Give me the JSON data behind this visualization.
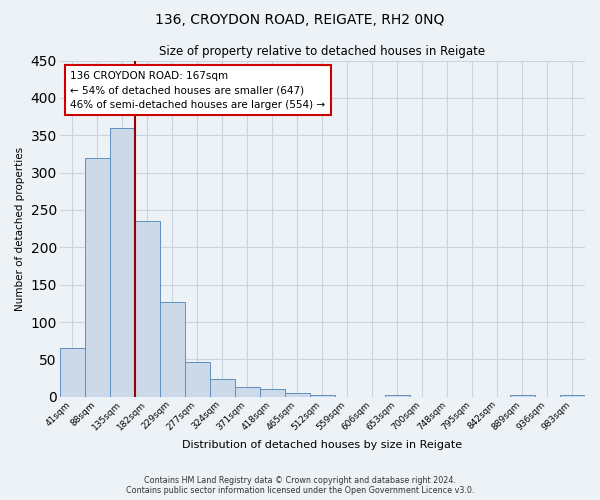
{
  "title": "136, CROYDON ROAD, REIGATE, RH2 0NQ",
  "subtitle": "Size of property relative to detached houses in Reigate",
  "xlabel": "Distribution of detached houses by size in Reigate",
  "ylabel": "Number of detached properties",
  "bar_heights": [
    65,
    320,
    360,
    235,
    127,
    47,
    24,
    13,
    10,
    5,
    2,
    0,
    0,
    2,
    0,
    0,
    0,
    0,
    2,
    0,
    2
  ],
  "bin_labels": [
    "41sqm",
    "88sqm",
    "135sqm",
    "182sqm",
    "229sqm",
    "277sqm",
    "324sqm",
    "371sqm",
    "418sqm",
    "465sqm",
    "512sqm",
    "559sqm",
    "606sqm",
    "653sqm",
    "700sqm",
    "748sqm",
    "795sqm",
    "842sqm",
    "889sqm",
    "936sqm",
    "983sqm"
  ],
  "bar_color": "#ccd9e8",
  "bar_edge_color": "#5f8fbe",
  "grid_color": "#c8d4e0",
  "bg_color": "#edf2f7",
  "vline_x": 2,
  "vline_color": "#990000",
  "annotation_line1": "136 CROYDON ROAD: 167sqm",
  "annotation_line2": "← 54% of detached houses are smaller (647)",
  "annotation_line3": "46% of semi-detached houses are larger (554) →",
  "annotation_box_color": "#ffffff",
  "annotation_box_edge_color": "#cc0000",
  "ylim": [
    0,
    450
  ],
  "yticks": [
    0,
    50,
    100,
    150,
    200,
    250,
    300,
    350,
    400,
    450
  ],
  "footer_line1": "Contains HM Land Registry data © Crown copyright and database right 2024.",
  "footer_line2": "Contains public sector information licensed under the Open Government Licence v3.0."
}
